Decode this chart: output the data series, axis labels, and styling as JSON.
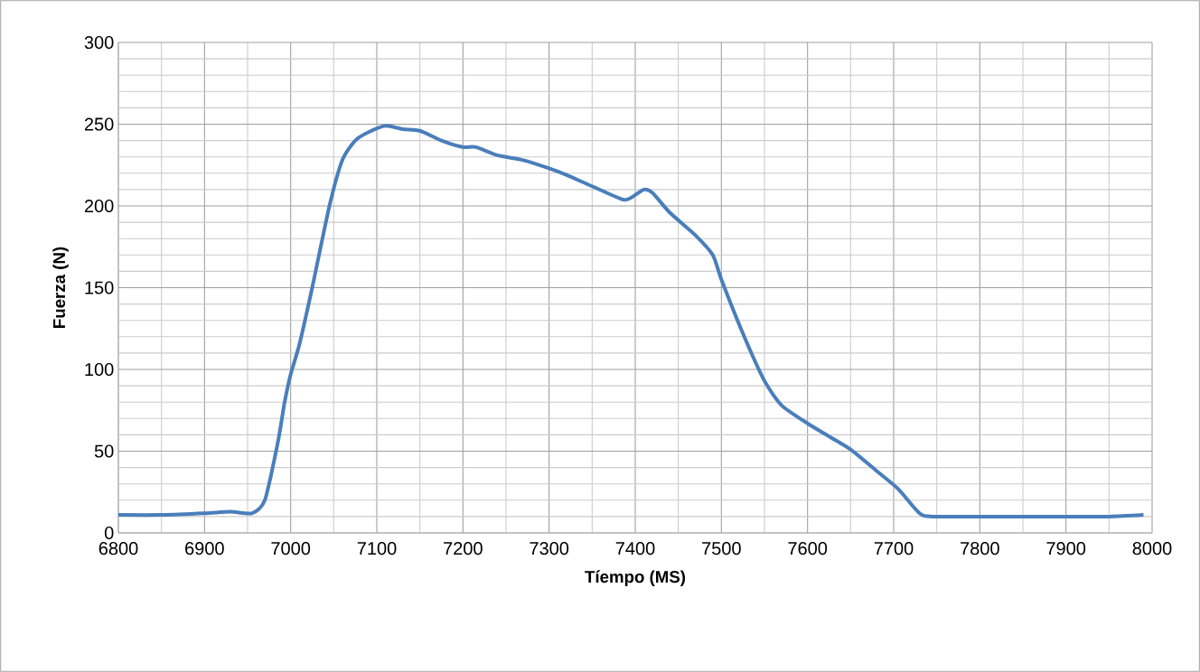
{
  "chart_data": {
    "type": "line",
    "xlabel": "Tíempo (MS)",
    "ylabel": "Fuerza (N)",
    "x": [
      6800,
      6850,
      6900,
      6930,
      6955,
      6970,
      6985,
      6993,
      7000,
      7010,
      7025,
      7045,
      7060,
      7075,
      7090,
      7110,
      7130,
      7150,
      7175,
      7200,
      7215,
      7240,
      7270,
      7300,
      7320,
      7350,
      7385,
      7395,
      7410,
      7420,
      7440,
      7470,
      7490,
      7500,
      7525,
      7550,
      7570,
      7600,
      7625,
      7650,
      7680,
      7705,
      7730,
      7745,
      7800,
      7850,
      7900,
      7950,
      7990
    ],
    "series": [
      {
        "color": "#4a7ebb",
        "values": [
          11,
          11,
          12,
          13,
          12,
          20,
          55,
          80,
          97,
          115,
          150,
          200,
          228,
          240,
          245,
          249,
          247,
          246,
          240,
          236,
          236,
          231,
          228,
          223,
          219,
          212,
          204,
          205,
          210,
          208,
          196,
          182,
          170,
          155,
          122,
          93,
          78,
          67,
          59,
          51,
          38,
          27,
          12,
          10,
          10,
          10,
          10,
          10,
          11
        ]
      }
    ],
    "xlim": [
      6800,
      8000
    ],
    "ylim": [
      0,
      300
    ],
    "xticks": [
      6800,
      6900,
      7000,
      7100,
      7200,
      7300,
      7400,
      7500,
      7600,
      7700,
      7800,
      7900,
      8000
    ],
    "yticks": [
      0,
      50,
      100,
      150,
      200,
      250,
      300
    ],
    "grid": true,
    "marker": "none",
    "line_style": "solid"
  }
}
